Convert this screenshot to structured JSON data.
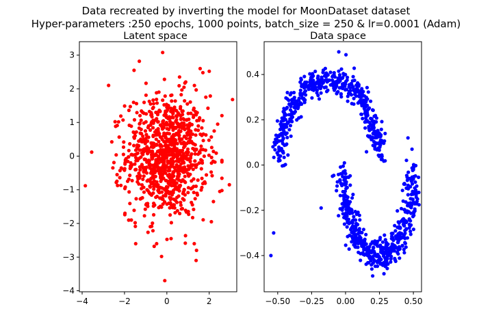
{
  "figure": {
    "title_line1": "Data recreated by inverting the model for MoonDataset dataset",
    "title_line2": "Hyper-parameters :250 epochs, 1000 points, batch_size = 250 & lr=0.0001 (Adam)"
  },
  "chart_data": [
    {
      "type": "scatter",
      "title": "Latent space",
      "xlabel": "",
      "ylabel": "",
      "xlim": [
        -4.13,
        3.3
      ],
      "ylim": [
        -4.03,
        3.4
      ],
      "xticks": [
        -4,
        -2,
        0,
        2
      ],
      "yticks": [
        -4,
        -3,
        -2,
        -1,
        0,
        1,
        2,
        3
      ],
      "color": "#ff0000",
      "series": [
        {
          "distribution": "approx. standard normal, 1000 points centered at (0, 0)",
          "n": 1000,
          "mean": [
            0,
            0
          ],
          "std": [
            1,
            1
          ],
          "points": [
            [
              -3.85,
              -0.88
            ],
            [
              -3.55,
              0.12
            ],
            [
              -2.75,
              2.1
            ],
            [
              -0.2,
              3.08
            ],
            [
              -1.3,
              2.82
            ],
            [
              1.7,
              2.48
            ],
            [
              2.0,
              2.52
            ],
            [
              3.1,
              1.68
            ],
            [
              2.95,
              -0.85
            ],
            [
              2.5,
              -1.05
            ],
            [
              2.1,
              -1.95
            ],
            [
              -0.1,
              -3.7
            ],
            [
              -0.25,
              -2.98
            ],
            [
              1.38,
              -3.1
            ],
            [
              1.4,
              -2.8
            ],
            [
              -0.6,
              -2.68
            ],
            [
              0.2,
              -2.45
            ],
            [
              -1.8,
              -1.9
            ],
            [
              -2.35,
              -0.55
            ],
            [
              -2.55,
              -0.35
            ],
            [
              -2.05,
              0.05
            ],
            [
              2.2,
              -1.35
            ],
            [
              2.4,
              0.95
            ],
            [
              -1.55,
              2.55
            ],
            [
              0.6,
              2.35
            ]
          ]
        }
      ]
    },
    {
      "type": "scatter",
      "title": "Data space",
      "xlabel": "",
      "ylabel": "",
      "xlim": [
        -0.6,
        0.56
      ],
      "ylim": [
        -0.56,
        0.545
      ],
      "xticks": [
        -0.5,
        -0.25,
        0.0,
        0.25,
        0.5
      ],
      "xtick_labels": [
        "−0.50",
        "−0.25",
        "0.00",
        "0.25",
        "0.50"
      ],
      "yticks": [
        -0.4,
        -0.2,
        0.0,
        0.2,
        0.4
      ],
      "ytick_labels": [
        "−0.4",
        "−0.2",
        "0.0",
        "0.2",
        "0.4"
      ],
      "color": "#0000ff",
      "series": [
        {
          "distribution": "two interleaving half-moons (noisy), 1000 points",
          "n": 1000,
          "upper_moon": {
            "x_range": [
              -0.5,
              0.05
            ],
            "center": [
              -0.12,
              0.03
            ],
            "radius_x": 0.36,
            "radius_y": 0.35,
            "noise": 0.03
          },
          "lower_moon": {
            "x_range": [
              -0.05,
              0.5
            ],
            "center": [
              0.24,
              -0.02
            ],
            "radius_x": 0.26,
            "radius_y": 0.38,
            "noise": 0.03
          },
          "points": [
            [
              -0.55,
              -0.4
            ],
            [
              -0.53,
              -0.3
            ],
            [
              -0.05,
              0.5
            ],
            [
              -0.18,
              -0.19
            ],
            [
              0.2,
              -0.49
            ],
            [
              0.46,
              0.12
            ],
            [
              0.49,
              0.07
            ],
            [
              -0.45,
              0.23
            ],
            [
              -0.38,
              0.32
            ],
            [
              0.3,
              -0.35
            ]
          ]
        }
      ]
    }
  ]
}
